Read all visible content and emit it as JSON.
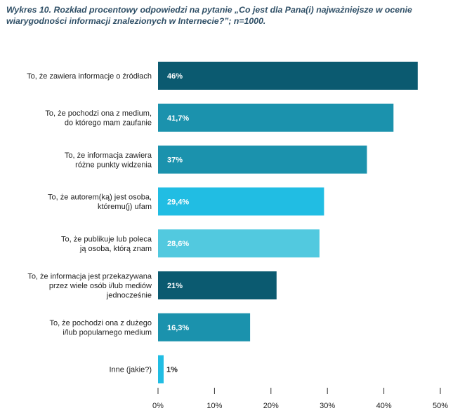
{
  "title": "Wykres 10. Rozkład procentowy odpowiedzi na pytanie „Co jest dla Pana(i) najważniejsze w ocenie wiarygodności informacji znalezionych w Internecie?”; n=1000.",
  "chart_data": {
    "type": "bar",
    "orientation": "horizontal",
    "title": "Wykres 10. Rozkład procentowy odpowiedzi na pytanie „Co jest dla Pana(i) najważniejsze w ocenie wiarygodności informacji znalezionych w Internecie?”; n=1000.",
    "xlabel": "",
    "ylabel": "",
    "xlim": [
      0,
      50
    ],
    "grid": false,
    "ticks": [
      0,
      10,
      20,
      30,
      40,
      50
    ],
    "tick_labels": [
      "0%",
      "10%",
      "20%",
      "30%",
      "40%",
      "50%"
    ],
    "categories": [
      [
        "To, że zawiera informacje o źródłach"
      ],
      [
        "To, że pochodzi ona z medium,",
        "do którego mam zaufanie"
      ],
      [
        "To, że informacja zawiera",
        "różne punkty widzenia"
      ],
      [
        "To, że autorem(ką) jest osoba,",
        "któremu(j) ufam"
      ],
      [
        "To, że publikuje lub poleca",
        "ją osoba, którą znam"
      ],
      [
        "To, że informacja jest przekazywana",
        "przez wiele osób i/lub mediów",
        "jednocześnie"
      ],
      [
        "To, że pochodzi ona z dużego",
        "i/lub popularnego medium"
      ],
      [
        "Inne (jakie?)"
      ]
    ],
    "values": [
      46,
      41.7,
      37,
      29.4,
      28.6,
      21,
      16.3,
      1
    ],
    "value_labels": [
      "46%",
      "41,7%",
      "37%",
      "29,4%",
      "28,6%",
      "21%",
      "16,3%",
      "1%"
    ],
    "colors": [
      "#0b5a70",
      "#1b92ad",
      "#1b92ad",
      "#21bde3",
      "#52c9df",
      "#0b5a70",
      "#1b92ad",
      "#21bde3"
    ]
  }
}
